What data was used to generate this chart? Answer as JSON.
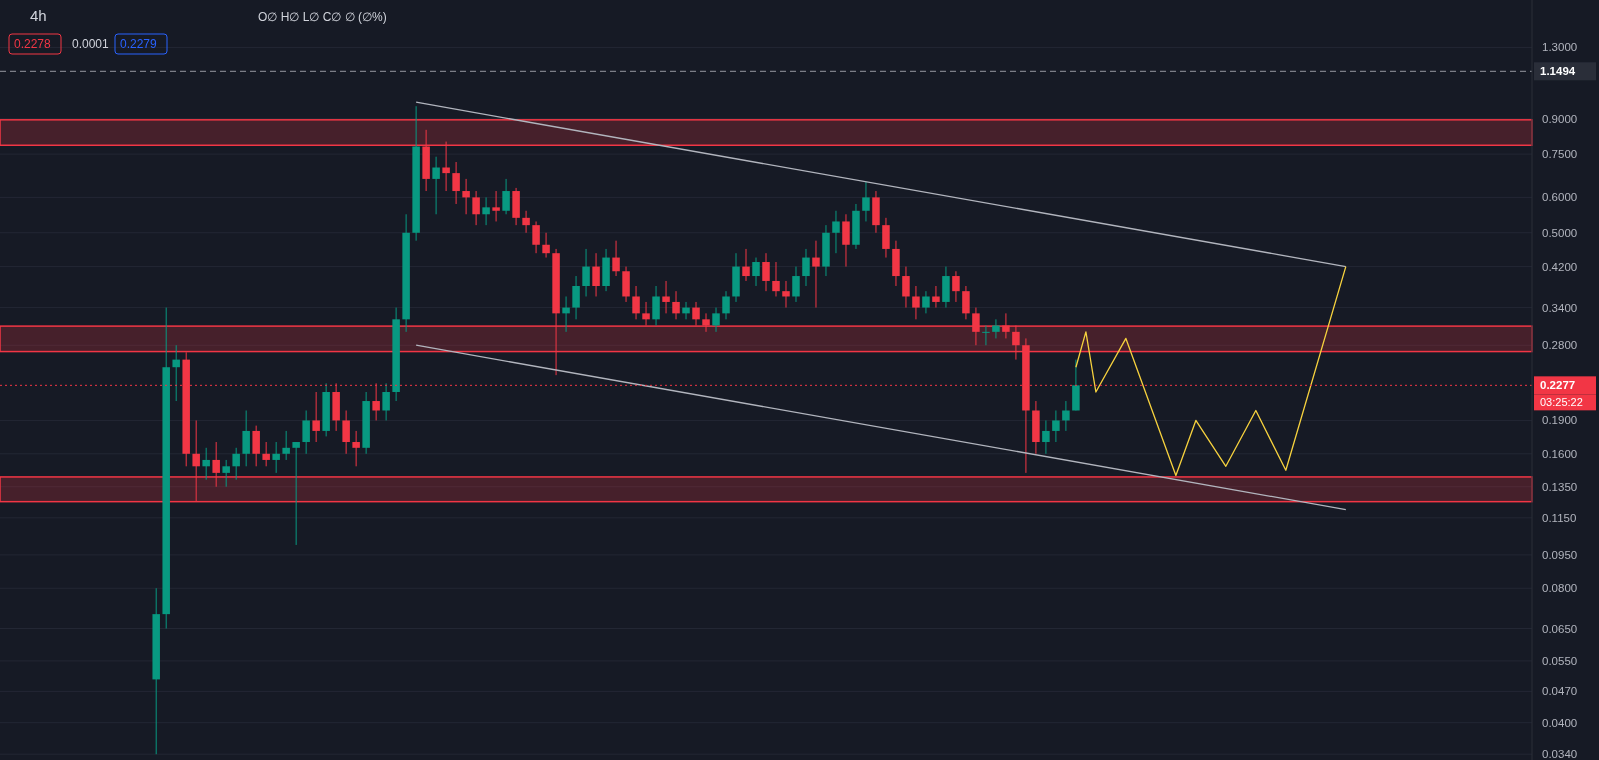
{
  "chart_data": {
    "type": "candlestick",
    "title": "4h",
    "annotations": [
      "O∅ H∅ L∅ C∅ ∅ (∅%)",
      "0.2278",
      "0.0001",
      "0.2279",
      "03:25:22"
    ],
    "categories": [
      null,
      null,
      null,
      null,
      null,
      null,
      null,
      null,
      null,
      null,
      null,
      null,
      null,
      null,
      null,
      null,
      null,
      null,
      null,
      null,
      null,
      null,
      null,
      null,
      null,
      null,
      null,
      null,
      null,
      null,
      null,
      null,
      null,
      null,
      null,
      null,
      null,
      null,
      null,
      null,
      null,
      null,
      null,
      null,
      null,
      null,
      null,
      null,
      null,
      null,
      null,
      null,
      null,
      null,
      null,
      null,
      null,
      null,
      null,
      null,
      null,
      null,
      null,
      null,
      null,
      null,
      null,
      null,
      null,
      null,
      null,
      null,
      null,
      null,
      null,
      null,
      null,
      null,
      null,
      null,
      null,
      null,
      null,
      null,
      null,
      null,
      null,
      null,
      null,
      null,
      null,
      null,
      null,
      null,
      null,
      null,
      null,
      null,
      null,
      null,
      null,
      null,
      null,
      null,
      null,
      null,
      null,
      null,
      null,
      null,
      null,
      null,
      null,
      null,
      null,
      null,
      null,
      null,
      null,
      null,
      null,
      null,
      null,
      null,
      null,
      null,
      null,
      null,
      null,
      null,
      null,
      null,
      null,
      null,
      null,
      null,
      null,
      null,
      null,
      null,
      null,
      null,
      null,
      null,
      null,
      null,
      null,
      null,
      null,
      null,
      null,
      null,
      null
    ],
    "ohlc": [
      null,
      null,
      null,
      null,
      null,
      null,
      null,
      null,
      null,
      null,
      null,
      null,
      null,
      null,
      null,
      [
        0.05,
        0.08,
        0.034,
        0.07
      ],
      [
        0.07,
        0.34,
        0.065,
        0.25
      ],
      [
        0.25,
        0.28,
        0.21,
        0.26
      ],
      [
        0.26,
        0.27,
        0.15,
        0.16
      ],
      [
        0.16,
        0.19,
        0.125,
        0.15
      ],
      [
        0.15,
        0.165,
        0.14,
        0.155
      ],
      [
        0.155,
        0.17,
        0.135,
        0.145
      ],
      [
        0.145,
        0.155,
        0.135,
        0.15
      ],
      [
        0.15,
        0.165,
        0.14,
        0.16
      ],
      [
        0.16,
        0.2,
        0.15,
        0.18
      ],
      [
        0.18,
        0.185,
        0.15,
        0.16
      ],
      [
        0.16,
        0.17,
        0.15,
        0.155
      ],
      [
        0.155,
        0.17,
        0.145,
        0.16
      ],
      [
        0.16,
        0.18,
        0.155,
        0.165
      ],
      [
        0.165,
        0.17,
        0.1,
        0.17
      ],
      [
        0.17,
        0.2,
        0.16,
        0.19
      ],
      [
        0.19,
        0.22,
        0.17,
        0.18
      ],
      [
        0.18,
        0.23,
        0.175,
        0.22
      ],
      [
        0.22,
        0.23,
        0.18,
        0.19
      ],
      [
        0.19,
        0.2,
        0.16,
        0.17
      ],
      [
        0.17,
        0.18,
        0.15,
        0.165
      ],
      [
        0.165,
        0.22,
        0.16,
        0.21
      ],
      [
        0.21,
        0.23,
        0.19,
        0.2
      ],
      [
        0.2,
        0.23,
        0.19,
        0.22
      ],
      [
        0.22,
        0.34,
        0.21,
        0.32
      ],
      [
        0.32,
        0.55,
        0.3,
        0.5
      ],
      [
        0.5,
        0.96,
        0.48,
        0.78
      ],
      [
        0.78,
        0.85,
        0.62,
        0.66
      ],
      [
        0.66,
        0.74,
        0.55,
        0.7
      ],
      [
        0.7,
        0.8,
        0.62,
        0.68
      ],
      [
        0.68,
        0.72,
        0.58,
        0.62
      ],
      [
        0.62,
        0.66,
        0.55,
        0.6
      ],
      [
        0.6,
        0.62,
        0.52,
        0.55
      ],
      [
        0.55,
        0.6,
        0.52,
        0.57
      ],
      [
        0.57,
        0.62,
        0.53,
        0.56
      ],
      [
        0.56,
        0.66,
        0.55,
        0.62
      ],
      [
        0.62,
        0.63,
        0.52,
        0.54
      ],
      [
        0.54,
        0.56,
        0.5,
        0.52
      ],
      [
        0.52,
        0.53,
        0.45,
        0.47
      ],
      [
        0.47,
        0.5,
        0.44,
        0.45
      ],
      [
        0.45,
        0.46,
        0.24,
        0.33
      ],
      [
        0.33,
        0.36,
        0.3,
        0.34
      ],
      [
        0.34,
        0.4,
        0.32,
        0.38
      ],
      [
        0.38,
        0.46,
        0.36,
        0.42
      ],
      [
        0.42,
        0.45,
        0.36,
        0.38
      ],
      [
        0.38,
        0.46,
        0.37,
        0.44
      ],
      [
        0.44,
        0.48,
        0.4,
        0.41
      ],
      [
        0.41,
        0.42,
        0.35,
        0.36
      ],
      [
        0.36,
        0.38,
        0.32,
        0.33
      ],
      [
        0.33,
        0.35,
        0.31,
        0.32
      ],
      [
        0.32,
        0.38,
        0.31,
        0.36
      ],
      [
        0.36,
        0.39,
        0.33,
        0.35
      ],
      [
        0.35,
        0.37,
        0.32,
        0.33
      ],
      [
        0.33,
        0.35,
        0.32,
        0.34
      ],
      [
        0.34,
        0.35,
        0.31,
        0.32
      ],
      [
        0.32,
        0.33,
        0.3,
        0.31
      ],
      [
        0.31,
        0.34,
        0.3,
        0.33
      ],
      [
        0.33,
        0.37,
        0.32,
        0.36
      ],
      [
        0.36,
        0.45,
        0.35,
        0.42
      ],
      [
        0.42,
        0.46,
        0.39,
        0.4
      ],
      [
        0.4,
        0.44,
        0.38,
        0.43
      ],
      [
        0.43,
        0.45,
        0.37,
        0.39
      ],
      [
        0.39,
        0.43,
        0.36,
        0.37
      ],
      [
        0.37,
        0.39,
        0.34,
        0.36
      ],
      [
        0.36,
        0.42,
        0.35,
        0.4
      ],
      [
        0.4,
        0.46,
        0.38,
        0.44
      ],
      [
        0.44,
        0.48,
        0.34,
        0.42
      ],
      [
        0.42,
        0.52,
        0.4,
        0.5
      ],
      [
        0.5,
        0.56,
        0.45,
        0.53
      ],
      [
        0.53,
        0.55,
        0.42,
        0.47
      ],
      [
        0.47,
        0.58,
        0.46,
        0.56
      ],
      [
        0.56,
        0.65,
        0.53,
        0.6
      ],
      [
        0.6,
        0.62,
        0.5,
        0.52
      ],
      [
        0.52,
        0.54,
        0.44,
        0.46
      ],
      [
        0.46,
        0.48,
        0.38,
        0.4
      ],
      [
        0.4,
        0.42,
        0.34,
        0.36
      ],
      [
        0.36,
        0.38,
        0.32,
        0.34
      ],
      [
        0.34,
        0.37,
        0.33,
        0.36
      ],
      [
        0.36,
        0.38,
        0.34,
        0.35
      ],
      [
        0.35,
        0.42,
        0.34,
        0.4
      ],
      [
        0.4,
        0.41,
        0.35,
        0.37
      ],
      [
        0.37,
        0.38,
        0.32,
        0.33
      ],
      [
        0.33,
        0.34,
        0.28,
        0.3
      ],
      [
        0.3,
        0.31,
        0.28,
        0.3
      ],
      [
        0.3,
        0.32,
        0.29,
        0.31
      ],
      [
        0.31,
        0.33,
        0.29,
        0.3
      ],
      [
        0.3,
        0.31,
        0.26,
        0.28
      ],
      [
        0.28,
        0.29,
        0.145,
        0.2
      ],
      [
        0.2,
        0.21,
        0.16,
        0.17
      ],
      [
        0.17,
        0.19,
        0.16,
        0.18
      ],
      [
        0.18,
        0.2,
        0.17,
        0.19
      ],
      [
        0.19,
        0.21,
        0.18,
        0.2
      ],
      [
        0.2,
        0.26,
        0.2,
        0.2277
      ],
      null,
      null,
      null,
      null,
      null,
      null,
      null,
      null,
      null,
      null,
      null,
      null,
      null,
      null,
      null,
      null,
      null,
      null,
      null,
      null,
      null,
      null,
      null,
      null,
      null,
      null,
      null,
      null,
      null,
      null,
      null,
      null,
      null,
      null,
      null,
      null,
      null,
      null,
      null,
      null,
      null,
      null,
      null,
      null,
      null
    ],
    "series": [
      {
        "type": "line",
        "color": "#b2b5be",
        "values": [
          null,
          null,
          null,
          null,
          null,
          null,
          null,
          null,
          null,
          null,
          null,
          null,
          null,
          null,
          null,
          null,
          null,
          null,
          null,
          null,
          null,
          null,
          null,
          null,
          null,
          null,
          null,
          null,
          null,
          null,
          null,
          null,
          null,
          null,
          null,
          null,
          null,
          null,
          null,
          null,
          null,
          0.98,
          null,
          null,
          null,
          null,
          null,
          null,
          null,
          null,
          null,
          null,
          null,
          null,
          null,
          null,
          null,
          null,
          null,
          null,
          null,
          null,
          null,
          null,
          null,
          null,
          null,
          null,
          null,
          null,
          null,
          null,
          null,
          null,
          null,
          null,
          null,
          null,
          null,
          null,
          null,
          null,
          null,
          null,
          null,
          null,
          null,
          null,
          null,
          null,
          null,
          null,
          null,
          null,
          null,
          null,
          null,
          null,
          null,
          null,
          null,
          null,
          null,
          null,
          null,
          null,
          null,
          null,
          null,
          null,
          null,
          null,
          null,
          null,
          null,
          null,
          null,
          null,
          null,
          null,
          null,
          null,
          null,
          null,
          null,
          null,
          null,
          null,
          null,
          null,
          null,
          null,
          null,
          null,
          0.42,
          null,
          null,
          null,
          null,
          null,
          null,
          null,
          null,
          null,
          null,
          null,
          null,
          null,
          null,
          null,
          null,
          null,
          null
        ]
      },
      {
        "type": "line",
        "color": "#b2b5be",
        "values": [
          null,
          null,
          null,
          null,
          null,
          null,
          null,
          null,
          null,
          null,
          null,
          null,
          null,
          null,
          null,
          null,
          null,
          null,
          null,
          null,
          null,
          null,
          null,
          null,
          null,
          null,
          null,
          null,
          null,
          null,
          null,
          null,
          null,
          null,
          null,
          null,
          null,
          null,
          null,
          null,
          null,
          0.28,
          null,
          null,
          null,
          null,
          null,
          null,
          null,
          null,
          null,
          null,
          null,
          null,
          null,
          null,
          null,
          null,
          null,
          null,
          null,
          null,
          null,
          null,
          null,
          null,
          null,
          null,
          null,
          null,
          null,
          null,
          null,
          null,
          null,
          null,
          null,
          null,
          null,
          null,
          null,
          null,
          null,
          null,
          null,
          null,
          null,
          null,
          null,
          null,
          null,
          null,
          null,
          null,
          null,
          null,
          null,
          null,
          null,
          null,
          null,
          null,
          null,
          null,
          null,
          null,
          null,
          null,
          null,
          null,
          null,
          null,
          null,
          null,
          null,
          null,
          null,
          null,
          null,
          null,
          null,
          null,
          null,
          null,
          null,
          null,
          null,
          null,
          null,
          null,
          null,
          null,
          null,
          null,
          0.12,
          null,
          null,
          null,
          null,
          null,
          null,
          null,
          null,
          null,
          null,
          null,
          null,
          null,
          null,
          null,
          null,
          null,
          null
        ]
      },
      {
        "type": "line",
        "color": "#f7d23e",
        "values": [
          null,
          null,
          null,
          null,
          null,
          null,
          null,
          null,
          null,
          null,
          null,
          null,
          null,
          null,
          null,
          null,
          null,
          null,
          null,
          null,
          null,
          null,
          null,
          null,
          null,
          null,
          null,
          null,
          null,
          null,
          null,
          null,
          null,
          null,
          null,
          null,
          null,
          null,
          null,
          null,
          null,
          null,
          null,
          null,
          null,
          null,
          null,
          null,
          null,
          null,
          null,
          null,
          null,
          null,
          null,
          null,
          null,
          null,
          null,
          null,
          null,
          null,
          null,
          null,
          null,
          null,
          null,
          null,
          null,
          null,
          null,
          null,
          null,
          null,
          null,
          null,
          null,
          null,
          null,
          null,
          null,
          null,
          null,
          null,
          null,
          null,
          null,
          null,
          null,
          null,
          null,
          null,
          null,
          null,
          null,
          null,
          null,
          null,
          null,
          null,
          null,
          null,
          null,
          null,
          null,
          null,
          null,
          0.25,
          0.3,
          0.22,
          null,
          null,
          0.29,
          null,
          null,
          null,
          null,
          0.143,
          null,
          0.19,
          null,
          null,
          0.15,
          null,
          null,
          0.2,
          null,
          null,
          0.147,
          null,
          null,
          null,
          null,
          null,
          0.42,
          null,
          null,
          null,
          null,
          null,
          null,
          null,
          null,
          null,
          null,
          null,
          null,
          null,
          null,
          null,
          null,
          null,
          null
        ]
      }
    ],
    "log": true,
    "ylim": [
      0.033,
      1.66
    ],
    "yticks": [
      {
        "value": 0.034,
        "label": "0.0340"
      },
      {
        "value": 0.04,
        "label": "0.0400"
      },
      {
        "value": 0.047,
        "label": "0.0470"
      },
      {
        "value": 0.055,
        "label": "0.0550"
      },
      {
        "value": 0.065,
        "label": "0.0650"
      },
      {
        "value": 0.08,
        "label": "0.0800"
      },
      {
        "value": 0.095,
        "label": "0.0950"
      },
      {
        "value": 0.115,
        "label": "0.1150"
      },
      {
        "value": 0.135,
        "label": "0.1350"
      },
      {
        "value": 0.16,
        "label": "0.1600"
      },
      {
        "value": 0.19,
        "label": "0.1900"
      },
      {
        "value": 0.28,
        "label": "0.2800"
      },
      {
        "value": 0.34,
        "label": "0.3400"
      },
      {
        "value": 0.42,
        "label": "0.4200"
      },
      {
        "value": 0.5,
        "label": "0.5000"
      },
      {
        "value": 0.6,
        "label": "0.6000"
      },
      {
        "value": 0.75,
        "label": "0.7500"
      },
      {
        "value": 0.9,
        "label": "0.9000"
      },
      {
        "value": 1.3,
        "label": "1.3000"
      }
    ],
    "grid": "y",
    "bands": [
      {
        "axis": "y",
        "from": 0.785,
        "to": 0.895,
        "color": "#f23645"
      },
      {
        "axis": "y",
        "from": 0.271,
        "to": 0.309,
        "color": "#f23645"
      },
      {
        "axis": "y",
        "from": 0.125,
        "to": 0.142,
        "color": "#f23645"
      }
    ],
    "ref_lines": [
      {
        "axis": "y",
        "value": 0.2277,
        "label": "0.2277",
        "color": "#f23645",
        "line_style": "dotted"
      },
      {
        "axis": "y",
        "value": 1.1494,
        "label": "1.1494",
        "color": "#9598a1",
        "line_style": "dashed"
      }
    ]
  }
}
